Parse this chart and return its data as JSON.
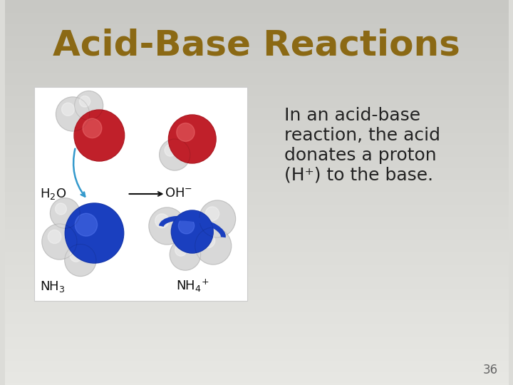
{
  "title": "Acid-Base Reactions",
  "title_color": "#8B6914",
  "title_fontsize": 36,
  "body_lines": [
    "In an acid-base",
    "reaction, the acid",
    "donates a proton",
    "(H⁺) to the base."
  ],
  "body_fontsize": 18,
  "body_color": "#222222",
  "page_number": "36",
  "page_number_color": "#666666",
  "page_number_fontsize": 12,
  "bg_color": "#dcdcd8",
  "img_box_color": "#ffffff",
  "img_box_edge": "#cccccc",
  "red_sphere": "#c0202a",
  "white_sphere": "#d8d8d8",
  "blue_sphere": "#1a3fbf",
  "blue_arrow": "#3399cc",
  "black_arrow": "#111111",
  "label_color": "#111111",
  "label_fontsize": 13
}
